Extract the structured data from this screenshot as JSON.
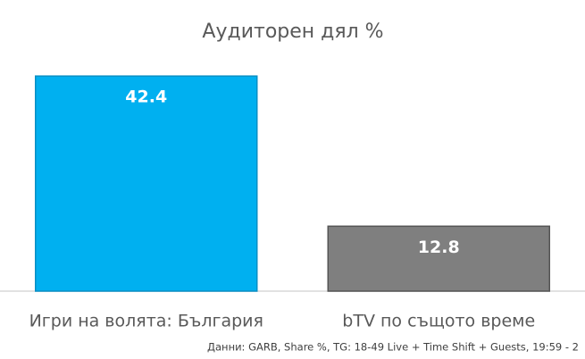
{
  "chart_data": {
    "type": "bar",
    "title": "Аудиторен дял %",
    "categories": [
      "Игри на волята: България",
      "bTV по същото време"
    ],
    "series": [
      {
        "name": "Аудиторен дял %",
        "colors": [
          "#00b0f0",
          "#7f7f7f"
        ],
        "values": [
          42.4,
          12.8
        ]
      }
    ],
    "note": "Данни: GARB, Share %, TG: 18-49 Live + Time Shift + Guests, 19:59 - 2"
  }
}
